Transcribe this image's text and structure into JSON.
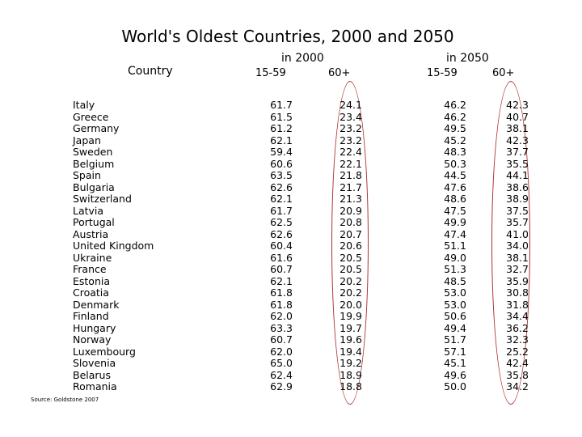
{
  "title": "World's Oldest Countries, 2000 and 2050",
  "headers": {
    "country": "Country",
    "year2000": "in 2000",
    "year2050": "in 2050",
    "age_15_59": "15-59",
    "age_60plus": "60+"
  },
  "source": "Source: Goldstone 2007",
  "rows": [
    {
      "country": "Italy",
      "y2000_15_59": "61.7",
      "y2000_60": "24.1",
      "y2050_15_59": "46.2",
      "y2050_60": "42.3"
    },
    {
      "country": "Greece",
      "y2000_15_59": "61.5",
      "y2000_60": "23.4",
      "y2050_15_59": "46.2",
      "y2050_60": "40.7"
    },
    {
      "country": "Germany",
      "y2000_15_59": "61.2",
      "y2000_60": "23.2",
      "y2050_15_59": "49.5",
      "y2050_60": "38.1"
    },
    {
      "country": "Japan",
      "y2000_15_59": "62.1",
      "y2000_60": "23.2",
      "y2050_15_59": "45.2",
      "y2050_60": "42.3"
    },
    {
      "country": "Sweden",
      "y2000_15_59": "59.4",
      "y2000_60": "22.4",
      "y2050_15_59": "48.3",
      "y2050_60": "37.7"
    },
    {
      "country": "Belgium",
      "y2000_15_59": "60.6",
      "y2000_60": "22.1",
      "y2050_15_59": "50.3",
      "y2050_60": "35.5"
    },
    {
      "country": "Spain",
      "y2000_15_59": "63.5",
      "y2000_60": "21.8",
      "y2050_15_59": "44.5",
      "y2050_60": "44.1"
    },
    {
      "country": "Bulgaria",
      "y2000_15_59": "62.6",
      "y2000_60": "21.7",
      "y2050_15_59": "47.6",
      "y2050_60": "38.6"
    },
    {
      "country": "Switzerland",
      "y2000_15_59": "62.1",
      "y2000_60": "21.3",
      "y2050_15_59": "48.6",
      "y2050_60": "38.9"
    },
    {
      "country": "Latvia",
      "y2000_15_59": "61.7",
      "y2000_60": "20.9",
      "y2050_15_59": "47.5",
      "y2050_60": "37.5"
    },
    {
      "country": "Portugal",
      "y2000_15_59": "62.5",
      "y2000_60": "20.8",
      "y2050_15_59": "49.9",
      "y2050_60": "35.7"
    },
    {
      "country": "Austria",
      "y2000_15_59": "62.6",
      "y2000_60": "20.7",
      "y2050_15_59": "47.4",
      "y2050_60": "41.0"
    },
    {
      "country": "United Kingdom",
      "y2000_15_59": "60.4",
      "y2000_60": "20.6",
      "y2050_15_59": "51.1",
      "y2050_60": "34.0"
    },
    {
      "country": "Ukraine",
      "y2000_15_59": "61.6",
      "y2000_60": "20.5",
      "y2050_15_59": "49.0",
      "y2050_60": "38.1"
    },
    {
      "country": "France",
      "y2000_15_59": "60.7",
      "y2000_60": "20.5",
      "y2050_15_59": "51.3",
      "y2050_60": "32.7"
    },
    {
      "country": "Estonia",
      "y2000_15_59": "62.1",
      "y2000_60": "20.2",
      "y2050_15_59": "48.5",
      "y2050_60": "35.9"
    },
    {
      "country": "Croatia",
      "y2000_15_59": "61.8",
      "y2000_60": "20.2",
      "y2050_15_59": "53.0",
      "y2050_60": "30.8"
    },
    {
      "country": "Denmark",
      "y2000_15_59": "61.8",
      "y2000_60": "20.0",
      "y2050_15_59": "53.0",
      "y2050_60": "31.8"
    },
    {
      "country": "Finland",
      "y2000_15_59": "62.0",
      "y2000_60": "19.9",
      "y2050_15_59": "50.6",
      "y2050_60": "34.4"
    },
    {
      "country": "Hungary",
      "y2000_15_59": "63.3",
      "y2000_60": "19.7",
      "y2050_15_59": "49.4",
      "y2050_60": "36.2"
    },
    {
      "country": "Norway",
      "y2000_15_59": "60.7",
      "y2000_60": "19.6",
      "y2050_15_59": "51.7",
      "y2050_60": "32.3"
    },
    {
      "country": "Luxembourg",
      "y2000_15_59": "62.0",
      "y2000_60": "19.4",
      "y2050_15_59": "57.1",
      "y2050_60": "25.2"
    },
    {
      "country": "Slovenia",
      "y2000_15_59": "65.0",
      "y2000_60": "19.2",
      "y2050_15_59": "45.1",
      "y2050_60": "42.4"
    },
    {
      "country": "Belarus",
      "y2000_15_59": "62.4",
      "y2000_60": "18.9",
      "y2050_15_59": "49.6",
      "y2050_60": "35.8"
    },
    {
      "country": "Romania",
      "y2000_15_59": "62.9",
      "y2000_60": "18.8",
      "y2050_15_59": "50.0",
      "y2050_60": "34.2"
    }
  ],
  "highlight_color": "#b03030"
}
